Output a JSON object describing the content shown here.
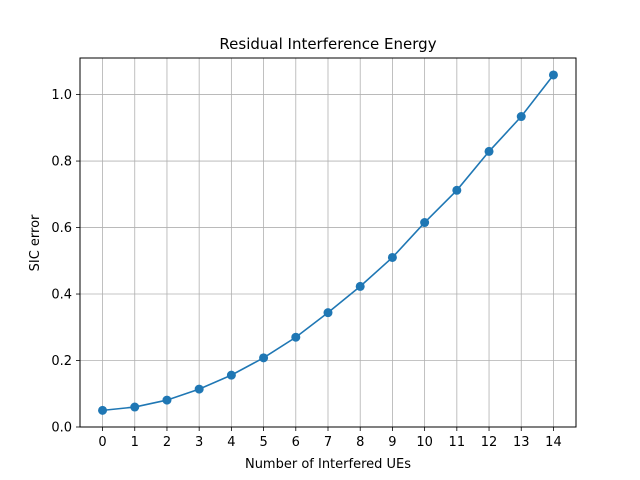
{
  "chart_data": {
    "type": "line",
    "title": "Residual Interference Energy",
    "xlabel": "Number of Interfered UEs",
    "ylabel": "SIC error",
    "x": [
      0,
      1,
      2,
      3,
      4,
      5,
      6,
      7,
      8,
      9,
      10,
      11,
      12,
      13,
      14
    ],
    "series": [
      {
        "values": [
          0.05,
          0.06,
          0.081,
          0.114,
          0.156,
          0.208,
          0.27,
          0.344,
          0.423,
          0.51,
          0.615,
          0.712,
          0.829,
          0.934,
          1.059
        ],
        "color": "#1f77b4",
        "marker": "circle"
      }
    ],
    "xticks": [
      0,
      1,
      2,
      3,
      4,
      5,
      6,
      7,
      8,
      9,
      10,
      11,
      12,
      13,
      14
    ],
    "yticks": [
      0.0,
      0.2,
      0.4,
      0.6,
      0.8,
      1.0
    ],
    "ytick_labels": [
      "0.0",
      "0.2",
      "0.4",
      "0.6",
      "0.8",
      "1.0"
    ],
    "xlim": [
      -0.7,
      14.7
    ],
    "ylim": [
      0.0,
      1.11
    ],
    "grid": true
  }
}
